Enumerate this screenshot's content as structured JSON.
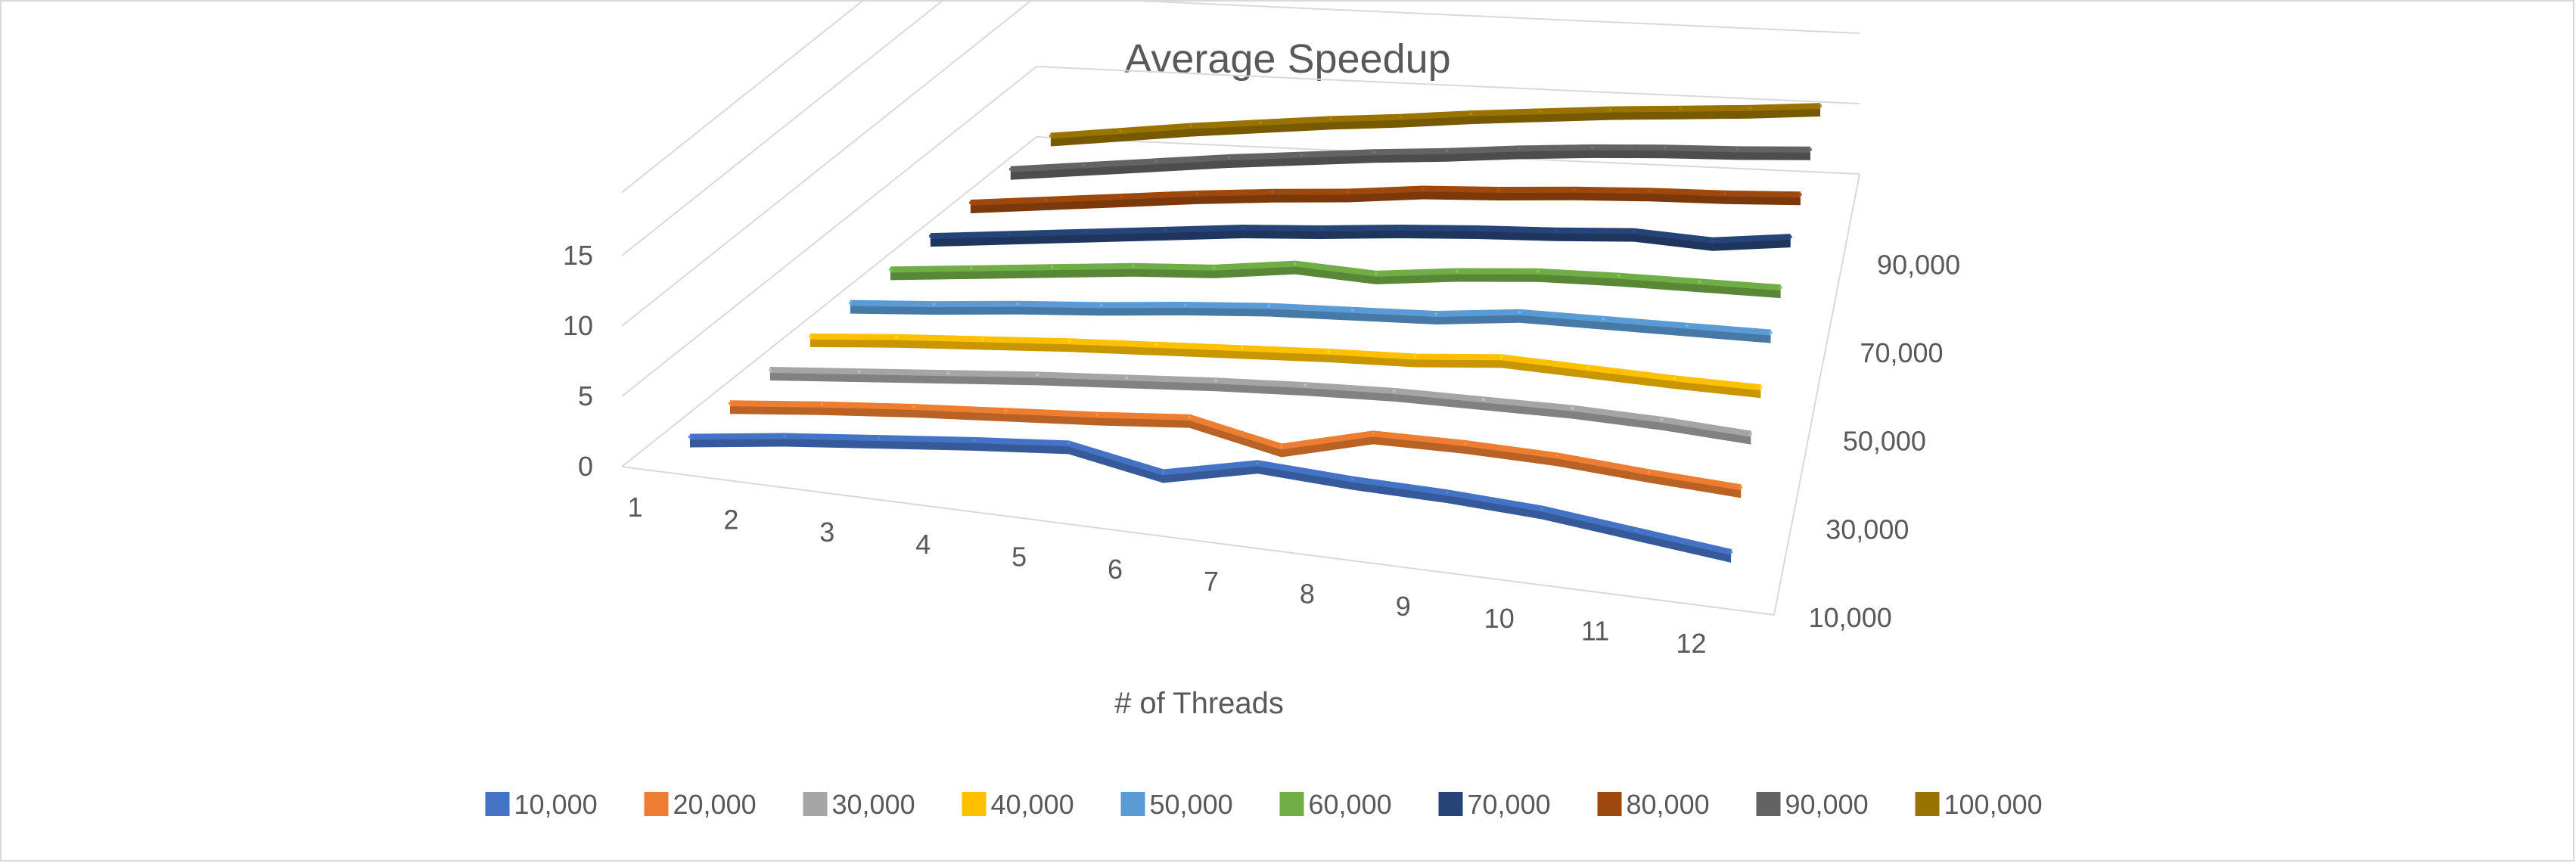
{
  "chart_data": {
    "type": "line",
    "variant": "3d-line",
    "title": "Average Speedup",
    "xlabel": "# of Threads",
    "ylabel": "",
    "categories": [
      "1",
      "2",
      "3",
      "4",
      "5",
      "6",
      "7",
      "8",
      "9",
      "10",
      "11",
      "12"
    ],
    "ylim": [
      0,
      15
    ],
    "y_ticks": [
      "0",
      "5",
      "10",
      "15"
    ],
    "depth_tick_labels": [
      "10,000",
      "30,000",
      "50,000",
      "70,000",
      "90,000"
    ],
    "grid": true,
    "legend_position": "bottom",
    "series": [
      {
        "name": "10,000",
        "color": "#4472C4",
        "values": [
          1.0,
          1.9,
          2.6,
          3.3,
          3.9,
          2.7,
          4.2,
          3.9,
          3.8,
          3.5,
          2.8,
          2.1
        ]
      },
      {
        "name": "20,000",
        "color": "#ED7D31",
        "values": [
          1.0,
          1.7,
          2.3,
          2.8,
          3.3,
          3.9,
          2.6,
          4.3,
          4.4,
          4.3,
          3.9,
          3.6
        ]
      },
      {
        "name": "30,000",
        "color": "#A5A5A5",
        "values": [
          1.0,
          1.6,
          2.2,
          2.8,
          3.3,
          3.8,
          4.2,
          4.5,
          4.6,
          4.7,
          4.6,
          4.3
        ]
      },
      {
        "name": "40,000",
        "color": "#FFC000",
        "values": [
          1.0,
          1.6,
          2.1,
          2.6,
          3.0,
          3.4,
          3.8,
          4.1,
          4.7,
          4.6,
          4.5,
          4.5
        ]
      },
      {
        "name": "50,000",
        "color": "#5B9BD5",
        "values": [
          1.0,
          1.5,
          2.1,
          2.6,
          3.2,
          3.7,
          4.0,
          4.3,
          5.0,
          5.1,
          5.2,
          5.3
        ]
      },
      {
        "name": "60,000",
        "color": "#70AD47",
        "values": [
          1.0,
          1.6,
          2.2,
          2.8,
          3.2,
          4.0,
          3.8,
          4.5,
          5.0,
          5.2,
          5.3,
          5.4
        ]
      },
      {
        "name": "70,000",
        "color": "#264478",
        "values": [
          1.0,
          1.6,
          2.2,
          2.8,
          3.4,
          3.8,
          4.3,
          4.7,
          5.0,
          5.4,
          5.2,
          5.9
        ]
      },
      {
        "name": "80,000",
        "color": "#9E480E",
        "values": [
          1.0,
          1.6,
          2.2,
          2.8,
          3.3,
          3.7,
          4.3,
          4.6,
          5.0,
          5.3,
          5.5,
          5.8
        ]
      },
      {
        "name": "90,000",
        "color": "#636363",
        "values": [
          1.0,
          1.6,
          2.2,
          2.8,
          3.3,
          3.8,
          4.2,
          4.7,
          5.1,
          5.4,
          5.6,
          5.9
        ]
      },
      {
        "name": "100,000",
        "color": "#997300",
        "values": [
          1.0,
          1.6,
          2.2,
          2.7,
          3.2,
          3.6,
          4.1,
          4.5,
          4.9,
          5.2,
          5.5,
          5.9
        ]
      }
    ]
  }
}
